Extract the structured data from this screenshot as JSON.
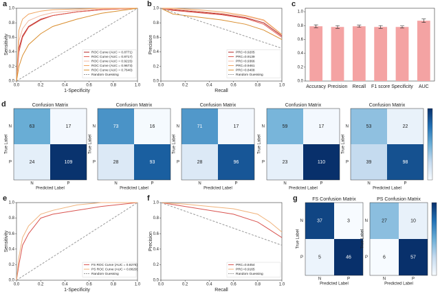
{
  "chart_data": [
    {
      "type": "line",
      "panel_label": "a",
      "xlabel": "1-Specificity",
      "ylabel": "Sensitivity",
      "xlim": [
        0,
        1
      ],
      "ylim": [
        0,
        1
      ],
      "xticks": [
        {
          "value": 0,
          "label": "0.0"
        },
        0.2,
        0.4,
        0.6,
        0.8,
        {
          "value": 1,
          "label": "1.0"
        }
      ],
      "yticks": [
        {
          "value": 0,
          "label": "0.0"
        },
        0.2,
        0.4,
        0.6,
        0.8,
        {
          "value": 1,
          "label": "1.0"
        }
      ],
      "series": [
        {
          "name": "ROC Curve (AUC = 0.8771)",
          "color": "#b22222",
          "x": [
            0,
            0.02,
            0.05,
            0.1,
            0.2,
            0.3,
            0.5,
            0.7,
            1
          ],
          "values": [
            0,
            0.45,
            0.62,
            0.75,
            0.85,
            0.9,
            0.95,
            0.98,
            1
          ]
        },
        {
          "name": "ROC Curve (AUC = 0.8717)",
          "color": "#e05a4f",
          "x": [
            0,
            0.02,
            0.05,
            0.1,
            0.2,
            0.3,
            0.5,
            0.7,
            1
          ],
          "values": [
            0,
            0.4,
            0.6,
            0.74,
            0.84,
            0.9,
            0.95,
            0.98,
            1
          ]
        },
        {
          "name": "ROC Curve (AUC = 0.9215)",
          "color": "#f2b8a0",
          "x": [
            0,
            0.02,
            0.05,
            0.1,
            0.2,
            0.3,
            0.5,
            0.7,
            1
          ],
          "values": [
            0,
            0.55,
            0.72,
            0.83,
            0.9,
            0.94,
            0.97,
            0.99,
            1
          ]
        },
        {
          "name": "ROC Curve (AUC = 0.9673)",
          "color": "#f0a35e",
          "x": [
            0,
            0.02,
            0.05,
            0.1,
            0.2,
            0.3,
            0.5,
            0.7,
            1
          ],
          "values": [
            0,
            0.7,
            0.85,
            0.92,
            0.96,
            0.98,
            0.99,
            1,
            1
          ]
        },
        {
          "name": "ROC Curve (AUC = 0.7640)",
          "color": "#d98c2b",
          "x": [
            0,
            0.02,
            0.05,
            0.1,
            0.2,
            0.3,
            0.5,
            0.7,
            1
          ],
          "values": [
            0,
            0.2,
            0.35,
            0.5,
            0.65,
            0.75,
            0.85,
            0.93,
            1
          ]
        },
        {
          "name": "Random Guessing",
          "color": "#999999",
          "dashed": true,
          "x": [
            0,
            1
          ],
          "values": [
            0,
            1
          ]
        }
      ]
    },
    {
      "type": "line",
      "panel_label": "b",
      "xlabel": "Recall",
      "ylabel": "Precision",
      "xlim": [
        0,
        1
      ],
      "ylim": [
        0,
        1
      ],
      "xticks": [
        {
          "value": 0,
          "label": "0.0"
        },
        0.2,
        0.4,
        0.6,
        0.8,
        {
          "value": 1,
          "label": "1.0"
        }
      ],
      "yticks": [
        {
          "value": 0,
          "label": "0.0"
        },
        0.2,
        0.4,
        0.6,
        0.8,
        {
          "value": 1,
          "label": "1.0"
        }
      ],
      "series": [
        {
          "name": "PRC=0.9205",
          "color": "#b22222",
          "x": [
            0,
            0.1,
            0.3,
            0.5,
            0.7,
            0.85,
            1
          ],
          "values": [
            1,
            0.98,
            0.95,
            0.92,
            0.87,
            0.8,
            0.62
          ]
        },
        {
          "name": "PRC=0.9139",
          "color": "#e05a4f",
          "x": [
            0,
            0.1,
            0.3,
            0.5,
            0.7,
            0.85,
            1
          ],
          "values": [
            1,
            0.97,
            0.94,
            0.91,
            0.86,
            0.78,
            0.6
          ]
        },
        {
          "name": "PRC=0.9366",
          "color": "#f2b8a0",
          "x": [
            0,
            0.1,
            0.3,
            0.5,
            0.7,
            0.85,
            1
          ],
          "values": [
            1,
            0.99,
            0.96,
            0.93,
            0.89,
            0.83,
            0.63
          ]
        },
        {
          "name": "PRC=0.9461",
          "color": "#f0a35e",
          "x": [
            0,
            0.1,
            0.3,
            0.5,
            0.7,
            0.85,
            1
          ],
          "values": [
            1,
            1,
            0.98,
            0.95,
            0.9,
            0.84,
            0.64
          ]
        },
        {
          "name": "PRC=0.8408",
          "color": "#d98c2b",
          "x": [
            0,
            0.1,
            0.3,
            0.5,
            0.7,
            0.85,
            1
          ],
          "values": [
            1,
            0.92,
            0.88,
            0.84,
            0.78,
            0.7,
            0.57
          ]
        },
        {
          "name": "Random Guessing",
          "color": "#999999",
          "dashed": true,
          "x": [
            0,
            1
          ],
          "values": [
            1,
            0.45
          ]
        }
      ]
    },
    {
      "type": "bar",
      "panel_label": "c",
      "color": "#f4a3a3",
      "categories": [
        "Accuracy",
        "Precision",
        "Recall",
        "F1 score",
        "Specificity",
        "AUC"
      ],
      "values": [
        0.79,
        0.78,
        0.79,
        0.78,
        0.78,
        0.87
      ],
      "errors": [
        0.02,
        0.02,
        0.015,
        0.02,
        0.015,
        0.025
      ],
      "ylim": [
        0,
        1.05
      ],
      "yticks": [
        {
          "value": 0,
          "label": "0.0"
        },
        0.2,
        0.4,
        0.6,
        0.8,
        {
          "value": 1,
          "label": "1.0"
        }
      ]
    },
    {
      "type": "heatmap",
      "panel_label": "d",
      "title": "Confusion Matrix",
      "xlabel": "Predicted Label",
      "ylabel": "True Label",
      "rows": [
        "N",
        "P"
      ],
      "columns": [
        "N",
        "P"
      ],
      "values": [
        [
          63,
          17
        ],
        [
          24,
          109
        ]
      ],
      "clim": [
        15,
        110
      ]
    },
    {
      "type": "heatmap",
      "title": "Confusion Matrix",
      "xlabel": "Predicted Label",
      "ylabel": "True Label",
      "rows": [
        "N",
        "P"
      ],
      "columns": [
        "N",
        "P"
      ],
      "values": [
        [
          73,
          16
        ],
        [
          28,
          93
        ]
      ],
      "clim": [
        15,
        110
      ]
    },
    {
      "type": "heatmap",
      "title": "Confusion Matrix",
      "xlabel": "Predicted Label",
      "ylabel": "True Label",
      "rows": [
        "N",
        "P"
      ],
      "columns": [
        "N",
        "P"
      ],
      "values": [
        [
          71,
          17
        ],
        [
          28,
          96
        ]
      ],
      "clim": [
        15,
        110
      ]
    },
    {
      "type": "heatmap",
      "title": "Confusion Matrix",
      "xlabel": "Predicted Label",
      "ylabel": "True Label",
      "rows": [
        "N",
        "P"
      ],
      "columns": [
        "N",
        "P"
      ],
      "values": [
        [
          59,
          17
        ],
        [
          23,
          110
        ]
      ],
      "clim": [
        15,
        110
      ]
    },
    {
      "type": "heatmap",
      "title": "Confusion Matrix",
      "xlabel": "Predicted Label",
      "ylabel": "True Label",
      "rows": [
        "N",
        "P"
      ],
      "columns": [
        "N",
        "P"
      ],
      "values": [
        [
          53,
          22
        ],
        [
          39,
          98
        ]
      ],
      "clim": [
        15,
        110
      ]
    },
    {
      "type": "line",
      "panel_label": "e",
      "xlabel": "1-Specificity",
      "ylabel": "Sensitivity",
      "xlim": [
        0,
        1
      ],
      "ylim": [
        0,
        1
      ],
      "xticks": [
        {
          "value": 0,
          "label": "0.0"
        },
        0.2,
        0.4,
        0.6,
        0.8,
        {
          "value": 1,
          "label": "1.0"
        }
      ],
      "yticks": [
        {
          "value": 0,
          "label": "0.0"
        },
        0.2,
        0.4,
        0.6,
        0.8,
        {
          "value": 1,
          "label": "1.0"
        }
      ],
      "series": [
        {
          "name": "FS ROC Curve (AUC = 0.8275)",
          "color": "#d9534f",
          "x": [
            0,
            0.02,
            0.05,
            0.1,
            0.2,
            0.3,
            0.5,
            0.7,
            1
          ],
          "values": [
            0,
            0.2,
            0.45,
            0.6,
            0.8,
            0.85,
            0.9,
            0.95,
            1
          ]
        },
        {
          "name": "PS ROC Curve (AUC = 0.8829)",
          "color": "#f0b27a",
          "x": [
            0,
            0.02,
            0.05,
            0.1,
            0.2,
            0.3,
            0.5,
            0.7,
            1
          ],
          "values": [
            0,
            0.3,
            0.55,
            0.7,
            0.85,
            0.9,
            0.97,
            1,
            1
          ]
        },
        {
          "name": "Random Guessing",
          "color": "#999999",
          "dashed": true,
          "x": [
            0,
            1
          ],
          "values": [
            0,
            1
          ]
        }
      ]
    },
    {
      "type": "line",
      "panel_label": "f",
      "xlabel": "Recall",
      "ylabel": "Precision",
      "xlim": [
        0,
        1
      ],
      "ylim": [
        0,
        1
      ],
      "xticks": [
        {
          "value": 0,
          "label": "0.0"
        },
        0.2,
        0.4,
        0.6,
        0.8,
        {
          "value": 1,
          "label": "1.0"
        }
      ],
      "yticks": [
        {
          "value": 0,
          "label": "0.0"
        },
        0.2,
        0.4,
        0.6,
        0.8,
        {
          "value": 1,
          "label": "1.0"
        }
      ],
      "series": [
        {
          "name": "PRC=0.8454",
          "color": "#d9534f",
          "x": [
            0,
            0.2,
            0.4,
            0.6,
            0.8,
            0.9,
            1
          ],
          "values": [
            1,
            0.95,
            0.9,
            0.85,
            0.75,
            0.65,
            0.55
          ]
        },
        {
          "name": "PRC=0.9165",
          "color": "#f0b27a",
          "x": [
            0,
            0.2,
            0.4,
            0.6,
            0.8,
            0.9,
            1
          ],
          "values": [
            1,
            0.98,
            0.95,
            0.92,
            0.85,
            0.75,
            0.62
          ]
        },
        {
          "name": "Random Guessing",
          "color": "#999999",
          "dashed": true,
          "x": [
            0,
            1
          ],
          "values": [
            1,
            0.45
          ]
        }
      ]
    },
    {
      "type": "heatmap",
      "panel_label": "g",
      "title": "FS Confusion Matrix",
      "xlabel": "Predicted Label",
      "ylabel": "True Label",
      "rows": [
        "N",
        "P"
      ],
      "columns": [
        "N",
        "P"
      ],
      "values": [
        [
          37,
          3
        ],
        [
          5,
          46
        ]
      ],
      "clim": [
        3,
        40
      ]
    },
    {
      "type": "heatmap",
      "title": "PS Confusion Matrix",
      "xlabel": "Predicted Label",
      "ylabel": "True Label",
      "rows": [
        "N",
        "P"
      ],
      "columns": [
        "N",
        "P"
      ],
      "values": [
        [
          27,
          10
        ],
        [
          6,
          57
        ]
      ],
      "clim": [
        6,
        57
      ]
    }
  ]
}
